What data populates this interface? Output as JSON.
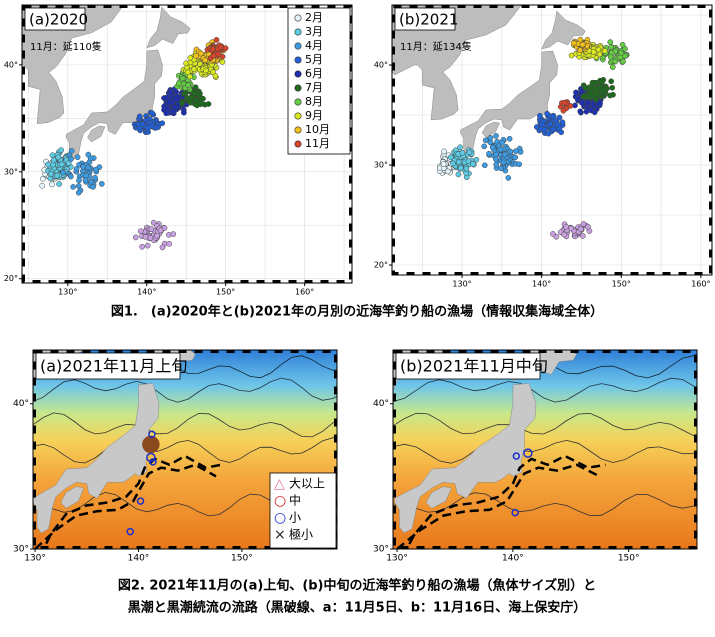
{
  "figure1": {
    "maps": [
      {
        "label": "(a)2020",
        "note": "11月：延110隻",
        "lon_range": [
          124.2,
          166
        ],
        "lat_range": [
          45.6,
          19.6
        ],
        "lat_ticks": [
          {
            "value": 40,
            "label": "40°"
          },
          {
            "value": 30,
            "label": "30°"
          },
          {
            "value": 20,
            "label": "20°"
          }
        ],
        "lon_ticks": [
          {
            "value": 130,
            "label": "130°"
          },
          {
            "value": 140,
            "label": "140°"
          },
          {
            "value": 150,
            "label": "150°"
          },
          {
            "value": 160,
            "label": "160°"
          }
        ]
      },
      {
        "label": "(b)2021",
        "note": "11月：延134隻",
        "lon_range": [
          121.2,
          161.4
        ],
        "lat_range": [
          46,
          19
        ],
        "lat_ticks": [
          {
            "value": 40,
            "label": "40°"
          },
          {
            "value": 30,
            "label": "30°"
          },
          {
            "value": 20,
            "label": "20°"
          }
        ],
        "lon_ticks": [
          {
            "value": 130,
            "label": "130°"
          },
          {
            "value": 140,
            "label": "140°"
          },
          {
            "value": 150,
            "label": "150°"
          },
          {
            "value": 160,
            "label": "160°"
          }
        ]
      }
    ],
    "legend": [
      {
        "name": "2月",
        "color": "#e4f6fb"
      },
      {
        "name": "3月",
        "color": "#5ccbe3"
      },
      {
        "name": "4月",
        "color": "#3c9be2"
      },
      {
        "name": "5月",
        "color": "#2160d8"
      },
      {
        "name": "6月",
        "color": "#1b2fb0"
      },
      {
        "name": "7月",
        "color": "#1d6b1d"
      },
      {
        "name": "8月",
        "color": "#66cc44"
      },
      {
        "name": "9月",
        "color": "#d9e81e"
      },
      {
        "name": "10月",
        "color": "#f2c01b"
      },
      {
        "name": "11月",
        "color": "#d6452a"
      }
    ],
    "caption": "図1.　(a)2020年と(b)2021年の月別の近海竿釣り船の漁場（情報収集海域全体）"
  },
  "figure2": {
    "maps": [
      {
        "label": "(a)2021年11月上旬",
        "lon_range": [
          129.8,
          159.2
        ],
        "lat_range": [
          43.7,
          30
        ],
        "lat_ticks": [
          {
            "value": 40,
            "label": "40°"
          },
          {
            "value": 30,
            "label": "30°"
          }
        ],
        "lon_ticks": [
          {
            "value": 130,
            "label": "130°"
          },
          {
            "value": 140,
            "label": "140°"
          },
          {
            "value": 150,
            "label": "150°"
          }
        ]
      },
      {
        "label": "(b)2021年11月中旬",
        "lon_range": [
          129.65,
          155.9
        ],
        "lat_range": [
          43.7,
          30
        ],
        "lat_ticks": [
          {
            "value": 40,
            "label": "40°"
          },
          {
            "value": 30,
            "label": "30°"
          }
        ],
        "lon_ticks": [
          {
            "value": 130,
            "label": "130°"
          },
          {
            "value": 140,
            "label": "140°"
          },
          {
            "value": 150,
            "label": "150°"
          }
        ]
      }
    ],
    "legend": [
      {
        "symbol": "△",
        "name": "大以上",
        "color": "#e87ca0"
      },
      {
        "symbol": "○",
        "name": "中",
        "color": "#d42020"
      },
      {
        "symbol": "○",
        "name": "小",
        "color": "#1a2fd0"
      },
      {
        "symbol": "×",
        "name": "極小",
        "color": "#222222"
      }
    ],
    "caption": [
      "図2. 2021年11月の(a)上旬、(b)中旬の近海竿釣り船の漁場（魚体サイズ別）と",
      "黒潮と黒潮続流の流路（黒破線、a：11月5日、b：11月16日、海上保安庁）"
    ]
  }
}
